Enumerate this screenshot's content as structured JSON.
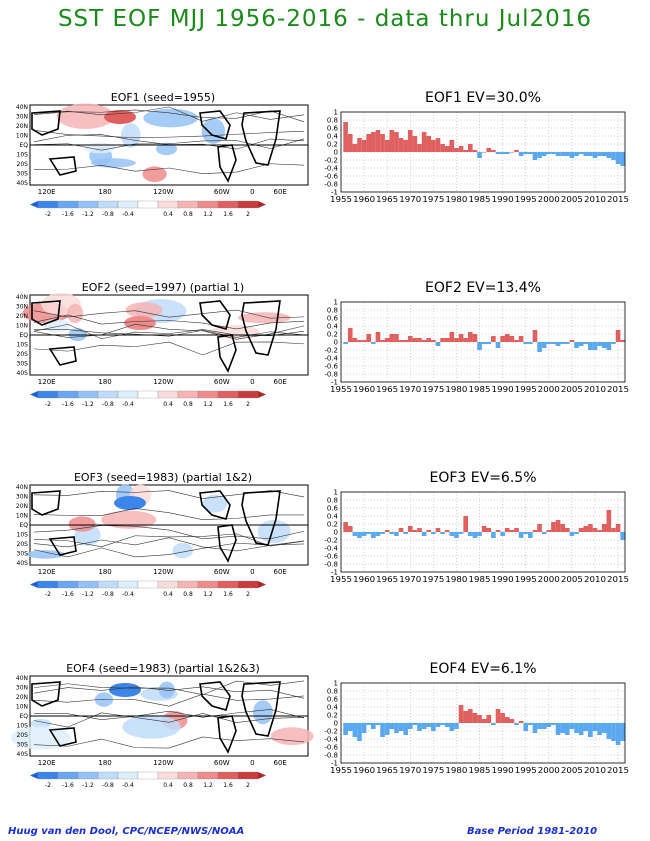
{
  "title": "SST EOF MJJ 1956-2016 - data thru Jul2016",
  "footer": {
    "left": "Huug van den Dool, CPC/NCEP/NWS/NOAA",
    "right": "Base Period 1981-2010"
  },
  "colors": {
    "title": "#1a8a1a",
    "footer": "#1a2fd0",
    "positive_bar": "#e06060",
    "negative_bar": "#5aa8ef"
  },
  "map_axes": {
    "lon_labels": [
      "120E",
      "180",
      "120W",
      "60W",
      "0",
      "60E"
    ],
    "lat_labels": [
      "40N",
      "30N",
      "20N",
      "10N",
      "EQ",
      "10S",
      "20S",
      "30S",
      "40S"
    ]
  },
  "colorbar": {
    "labels": [
      "-2",
      "-1.6",
      "-1.2",
      "-0.8",
      "-0.4",
      "0.4",
      "0.8",
      "1.2",
      "1.6",
      "2"
    ],
    "colors": [
      "#1c5fd8",
      "#3c86ea",
      "#6aa6f2",
      "#95c2f6",
      "#c0dcfa",
      "#ddeefc",
      "#ffffff",
      "#fbdcdc",
      "#f6b4b4",
      "#ee8c8c",
      "#e06060",
      "#c83c3c",
      "#ac2828"
    ]
  },
  "eofs": [
    {
      "map_title": "EOF1  (seed=1955)",
      "chart_data": {
        "type": "bar",
        "title": "EOF1  EV=30.0%",
        "ylim": [
          -1,
          1
        ],
        "yticks": [
          "1",
          "0.8",
          "0.6",
          "0.4",
          "0.2",
          "0",
          "-0.2",
          "-0.4",
          "-0.6",
          "-0.8",
          "-1"
        ],
        "xtick_labels": [
          "1955",
          "1960",
          "1965",
          "1970",
          "1975",
          "1980",
          "1985",
          "1990",
          "1995",
          "2000",
          "2005",
          "2010",
          "2015"
        ],
        "x": [
          1956,
          1957,
          1958,
          1959,
          1960,
          1961,
          1962,
          1963,
          1964,
          1965,
          1966,
          1967,
          1968,
          1969,
          1970,
          1971,
          1972,
          1973,
          1974,
          1975,
          1976,
          1977,
          1978,
          1979,
          1980,
          1981,
          1982,
          1983,
          1984,
          1985,
          1986,
          1987,
          1988,
          1989,
          1990,
          1991,
          1992,
          1993,
          1994,
          1995,
          1996,
          1997,
          1998,
          1999,
          2000,
          2001,
          2002,
          2003,
          2004,
          2005,
          2006,
          2007,
          2008,
          2009,
          2010,
          2011,
          2012,
          2013,
          2014,
          2015,
          2016
        ],
        "values": [
          0.75,
          0.45,
          0.2,
          0.35,
          0.3,
          0.45,
          0.5,
          0.55,
          0.45,
          0.3,
          0.55,
          0.5,
          0.35,
          0.3,
          0.55,
          0.4,
          0.2,
          0.5,
          0.4,
          0.3,
          0.35,
          0.2,
          0.15,
          0.3,
          0.1,
          0.15,
          0.05,
          0.2,
          0.05,
          -0.15,
          0.0,
          0.1,
          0.05,
          -0.05,
          -0.05,
          -0.05,
          0.0,
          0.05,
          -0.1,
          -0.05,
          -0.05,
          -0.2,
          -0.15,
          -0.1,
          -0.05,
          -0.05,
          -0.1,
          -0.1,
          -0.1,
          -0.15,
          -0.1,
          -0.05,
          -0.1,
          -0.1,
          -0.15,
          -0.1,
          -0.1,
          -0.15,
          -0.2,
          -0.3,
          -0.35
        ]
      }
    },
    {
      "map_title": "EOF2  (seed=1997) (partial 1)",
      "chart_data": {
        "type": "bar",
        "title": "EOF2  EV=13.4%",
        "ylim": [
          -1,
          1
        ],
        "yticks": [
          "1",
          "0.8",
          "0.6",
          "0.4",
          "0.2",
          "0",
          "-0.2",
          "-0.4",
          "-0.6",
          "-0.8",
          "-1"
        ],
        "xtick_labels": [
          "1955",
          "1960",
          "1965",
          "1970",
          "1975",
          "1980",
          "1985",
          "1990",
          "1995",
          "2000",
          "2005",
          "2010",
          "2015"
        ],
        "x": [
          1956,
          1957,
          1958,
          1959,
          1960,
          1961,
          1962,
          1963,
          1964,
          1965,
          1966,
          1967,
          1968,
          1969,
          1970,
          1971,
          1972,
          1973,
          1974,
          1975,
          1976,
          1977,
          1978,
          1979,
          1980,
          1981,
          1982,
          1983,
          1984,
          1985,
          1986,
          1987,
          1988,
          1989,
          1990,
          1991,
          1992,
          1993,
          1994,
          1995,
          1996,
          1997,
          1998,
          1999,
          2000,
          2001,
          2002,
          2003,
          2004,
          2005,
          2006,
          2007,
          2008,
          2009,
          2010,
          2011,
          2012,
          2013,
          2014,
          2015,
          2016
        ],
        "values": [
          -0.05,
          0.35,
          0.1,
          0.05,
          0.05,
          0.2,
          -0.05,
          0.25,
          0.05,
          0.1,
          0.2,
          0.2,
          0.05,
          0.05,
          0.15,
          0.1,
          0.1,
          0.05,
          0.1,
          0.05,
          -0.1,
          0.1,
          0.1,
          0.25,
          0.1,
          0.2,
          0.1,
          0.25,
          0.2,
          -0.2,
          -0.05,
          -0.05,
          0.15,
          -0.15,
          0.15,
          0.2,
          0.15,
          0.05,
          0.15,
          -0.05,
          -0.05,
          0.3,
          -0.25,
          -0.15,
          -0.05,
          -0.05,
          -0.1,
          -0.05,
          -0.05,
          0.05,
          -0.15,
          -0.1,
          -0.05,
          -0.2,
          -0.2,
          -0.1,
          -0.15,
          -0.2,
          -0.05,
          0.3,
          0.05
        ]
      }
    },
    {
      "map_title": "EOF3  (seed=1983) (partial 1&2)",
      "chart_data": {
        "type": "bar",
        "title": "EOF3  EV=6.5%",
        "ylim": [
          -1,
          1
        ],
        "yticks": [
          "1",
          "0.8",
          "0.6",
          "0.4",
          "0.2",
          "0",
          "-0.2",
          "-0.4",
          "-0.6",
          "-0.8",
          "-1"
        ],
        "xtick_labels": [
          "1955",
          "1960",
          "1965",
          "1970",
          "1975",
          "1980",
          "1985",
          "1990",
          "1995",
          "2000",
          "2005",
          "2010",
          "2015"
        ],
        "x": [
          1956,
          1957,
          1958,
          1959,
          1960,
          1961,
          1962,
          1963,
          1964,
          1965,
          1966,
          1967,
          1968,
          1969,
          1970,
          1971,
          1972,
          1973,
          1974,
          1975,
          1976,
          1977,
          1978,
          1979,
          1980,
          1981,
          1982,
          1983,
          1984,
          1985,
          1986,
          1987,
          1988,
          1989,
          1990,
          1991,
          1992,
          1993,
          1994,
          1995,
          1996,
          1997,
          1998,
          1999,
          2000,
          2001,
          2002,
          2003,
          2004,
          2005,
          2006,
          2007,
          2008,
          2009,
          2010,
          2011,
          2012,
          2013,
          2014,
          2015,
          2016
        ],
        "values": [
          0.25,
          0.15,
          -0.1,
          -0.15,
          -0.1,
          -0.05,
          -0.15,
          -0.1,
          -0.05,
          0.05,
          -0.05,
          -0.1,
          0.1,
          -0.05,
          0.15,
          0.05,
          0.1,
          -0.1,
          0.05,
          -0.05,
          0.1,
          -0.05,
          0.05,
          -0.1,
          -0.15,
          -0.05,
          0.4,
          -0.1,
          -0.15,
          -0.1,
          0.15,
          0.1,
          -0.15,
          0.05,
          -0.1,
          0.1,
          0.05,
          0.1,
          -0.15,
          -0.05,
          -0.15,
          0.05,
          0.2,
          -0.05,
          0.05,
          0.25,
          0.3,
          0.2,
          0.1,
          -0.1,
          -0.05,
          0.1,
          0.15,
          0.2,
          0.1,
          0.05,
          0.2,
          0.55,
          0.1,
          0.2,
          -0.2
        ]
      }
    },
    {
      "map_title": "EOF4  (seed=1983) (partial 1&2&3)",
      "chart_data": {
        "type": "bar",
        "title": "EOF4  EV=6.1%",
        "ylim": [
          -1,
          1
        ],
        "yticks": [
          "1",
          "0.8",
          "0.6",
          "0.4",
          "0.2",
          "0",
          "-0.2",
          "-0.4",
          "-0.6",
          "-0.8",
          "-1"
        ],
        "xtick_labels": [
          "1955",
          "1960",
          "1965",
          "1970",
          "1975",
          "1980",
          "1985",
          "1990",
          "1995",
          "2000",
          "2005",
          "2010",
          "2015"
        ],
        "x": [
          1956,
          1957,
          1958,
          1959,
          1960,
          1961,
          1962,
          1963,
          1964,
          1965,
          1966,
          1967,
          1968,
          1969,
          1970,
          1971,
          1972,
          1973,
          1974,
          1975,
          1976,
          1977,
          1978,
          1979,
          1980,
          1981,
          1982,
          1983,
          1984,
          1985,
          1986,
          1987,
          1988,
          1989,
          1990,
          1991,
          1992,
          1993,
          1994,
          1995,
          1996,
          1997,
          1998,
          1999,
          2000,
          2001,
          2002,
          2003,
          2004,
          2005,
          2006,
          2007,
          2008,
          2009,
          2010,
          2011,
          2012,
          2013,
          2014,
          2015,
          2016
        ],
        "values": [
          -0.3,
          -0.2,
          -0.35,
          -0.45,
          -0.25,
          -0.05,
          -0.15,
          -0.05,
          -0.35,
          -0.3,
          -0.15,
          -0.25,
          -0.2,
          -0.3,
          -0.15,
          -0.05,
          -0.2,
          -0.15,
          -0.1,
          -0.2,
          -0.1,
          -0.05,
          -0.1,
          -0.2,
          -0.15,
          0.45,
          0.3,
          0.35,
          0.25,
          0.2,
          0.1,
          0.2,
          -0.05,
          0.35,
          0.25,
          0.15,
          0.1,
          -0.05,
          0.05,
          -0.2,
          -0.05,
          -0.25,
          -0.15,
          -0.15,
          -0.1,
          -0.05,
          -0.3,
          -0.25,
          -0.3,
          -0.15,
          -0.25,
          -0.3,
          -0.2,
          -0.35,
          -0.2,
          -0.3,
          -0.25,
          -0.4,
          -0.45,
          -0.55,
          -0.45
        ]
      }
    }
  ]
}
